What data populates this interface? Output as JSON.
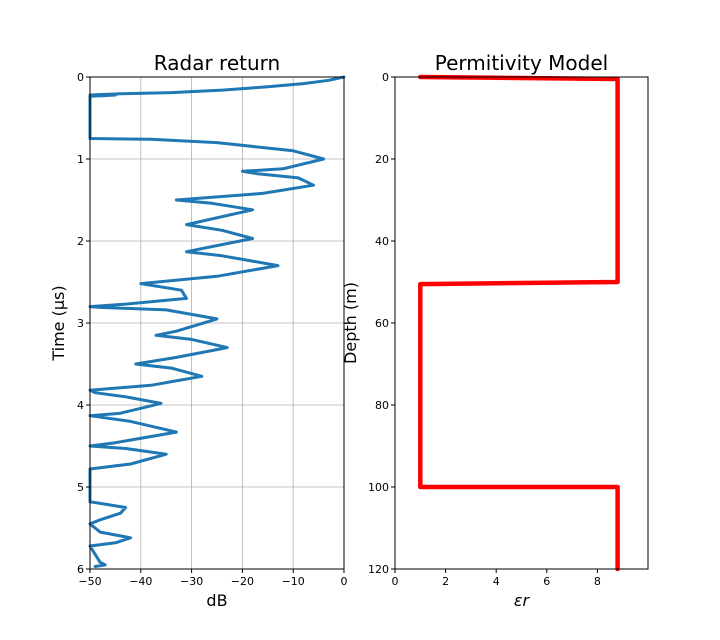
{
  "chart_data": [
    {
      "type": "line",
      "title": "Radar return",
      "xlabel": "dB",
      "ylabel": "Time (μs)",
      "xlim": [
        -50,
        0
      ],
      "ylim": [
        0,
        6
      ],
      "y_inverted": true,
      "grid": true,
      "xticks": [
        "−50",
        "−40",
        "−30",
        "−20",
        "−10",
        "0"
      ],
      "yticks": [
        "0",
        "1",
        "2",
        "3",
        "4",
        "5",
        "6"
      ],
      "color": "#1f77b4",
      "series": [
        {
          "x": [
            0,
            -3,
            -8,
            -15,
            -24,
            -34,
            -44,
            -50,
            -48,
            -45,
            -50,
            -50,
            -38,
            -25,
            -10,
            -4,
            -12,
            -20,
            -17,
            -9,
            -6,
            -16,
            -33,
            -26,
            -18,
            -31,
            -24,
            -18,
            -31,
            -24,
            -13,
            -25,
            -40,
            -32,
            -31,
            -43,
            -50,
            -48,
            -35,
            -25,
            -33,
            -37,
            -30,
            -23,
            -33,
            -41,
            -34,
            -28,
            -38,
            -50,
            -49,
            -43,
            -36,
            -44,
            -50,
            -42,
            -33,
            -45,
            -50,
            -43,
            -35,
            -42,
            -50,
            -50,
            -48,
            -43,
            -44,
            -48,
            -50,
            -48,
            -42,
            -45,
            -50,
            -48,
            -47,
            -49
          ],
          "y": [
            0,
            0.04,
            0.08,
            0.12,
            0.16,
            0.19,
            0.205,
            0.22,
            0.23,
            0.22,
            0.235,
            0.75,
            0.76,
            0.8,
            0.9,
            1.0,
            1.12,
            1.15,
            1.18,
            1.23,
            1.32,
            1.42,
            1.5,
            1.54,
            1.62,
            1.8,
            1.87,
            1.97,
            2.13,
            2.18,
            2.3,
            2.43,
            2.52,
            2.6,
            2.7,
            2.77,
            2.8,
            2.81,
            2.84,
            2.95,
            3.1,
            3.15,
            3.2,
            3.3,
            3.42,
            3.5,
            3.55,
            3.65,
            3.76,
            3.82,
            3.85,
            3.9,
            3.98,
            4.1,
            4.13,
            4.2,
            4.33,
            4.46,
            4.5,
            4.53,
            4.6,
            4.72,
            4.78,
            5.18,
            5.2,
            5.25,
            5.32,
            5.4,
            5.45,
            5.55,
            5.62,
            5.68,
            5.72,
            5.92,
            5.95,
            5.97
          ]
        }
      ]
    },
    {
      "type": "line",
      "title": "Permitivity Model",
      "xlabel": "εr",
      "ylabel": "Depth (m)",
      "xlim": [
        0,
        10
      ],
      "ylim": [
        0,
        120
      ],
      "y_inverted": true,
      "grid": false,
      "xticks": [
        "0",
        "2",
        "4",
        "6",
        "8"
      ],
      "yticks": [
        "0",
        "20",
        "40",
        "60",
        "80",
        "100",
        "120"
      ],
      "color": "#ff0000",
      "series": [
        {
          "x": [
            1,
            8.8,
            8.8,
            1,
            1,
            8.8,
            8.8
          ],
          "y": [
            0,
            0.5,
            50,
            50.5,
            100,
            100,
            120
          ]
        }
      ]
    }
  ]
}
